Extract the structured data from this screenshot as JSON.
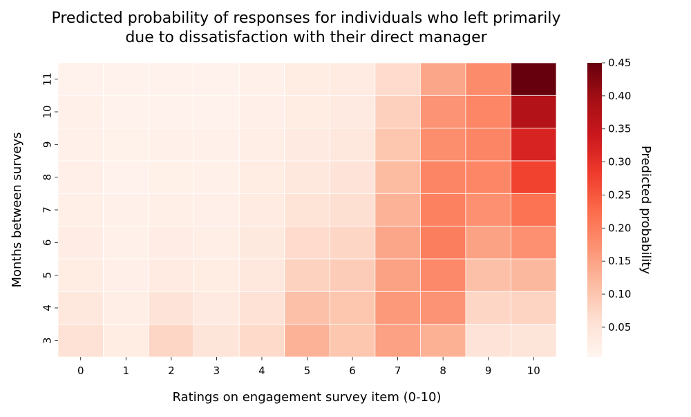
{
  "chart_data": {
    "type": "heatmap",
    "title": [
      "Predicted probability of responses for individuals who left primarily",
      "due to dissatisfaction with their direct manager"
    ],
    "xlabel": "Ratings on engagement survey item (0-10)",
    "ylabel": "Months between surveys",
    "x_categories": [
      "0",
      "1",
      "2",
      "3",
      "4",
      "5",
      "6",
      "7",
      "8",
      "9",
      "10"
    ],
    "y_categories": [
      "11",
      "10",
      "9",
      "8",
      "7",
      "6",
      "5",
      "4",
      "3"
    ],
    "values": [
      [
        0.015,
        0.012,
        0.013,
        0.012,
        0.018,
        0.027,
        0.032,
        0.068,
        0.145,
        0.182,
        0.45
      ],
      [
        0.016,
        0.013,
        0.015,
        0.015,
        0.02,
        0.03,
        0.035,
        0.085,
        0.17,
        0.188,
        0.375
      ],
      [
        0.018,
        0.014,
        0.017,
        0.017,
        0.023,
        0.035,
        0.042,
        0.1,
        0.178,
        0.19,
        0.32
      ],
      [
        0.02,
        0.015,
        0.019,
        0.018,
        0.027,
        0.04,
        0.05,
        0.115,
        0.19,
        0.188,
        0.275
      ],
      [
        0.022,
        0.016,
        0.022,
        0.02,
        0.032,
        0.052,
        0.06,
        0.128,
        0.195,
        0.175,
        0.215
      ],
      [
        0.025,
        0.018,
        0.025,
        0.023,
        0.037,
        0.068,
        0.075,
        0.145,
        0.2,
        0.15,
        0.175
      ],
      [
        0.03,
        0.02,
        0.032,
        0.027,
        0.042,
        0.082,
        0.09,
        0.15,
        0.185,
        0.11,
        0.12
      ],
      [
        0.04,
        0.023,
        0.05,
        0.035,
        0.055,
        0.108,
        0.1,
        0.162,
        0.17,
        0.075,
        0.08
      ],
      [
        0.055,
        0.03,
        0.075,
        0.048,
        0.07,
        0.128,
        0.1,
        0.152,
        0.13,
        0.05,
        0.048
      ]
    ],
    "vmin": 0.005,
    "vmax": 0.45,
    "colorbar": {
      "label": "Predicted probability",
      "ticks": [
        "0.05",
        "0.10",
        "0.15",
        "0.20",
        "0.25",
        "0.30",
        "0.35",
        "0.40",
        "0.45"
      ]
    },
    "colormap": [
      "#fff5f0",
      "#fee0d2",
      "#fcbba1",
      "#fc9272",
      "#fb6a4a",
      "#ef3b2c",
      "#cb181d",
      "#a50f15",
      "#67000d"
    ]
  }
}
